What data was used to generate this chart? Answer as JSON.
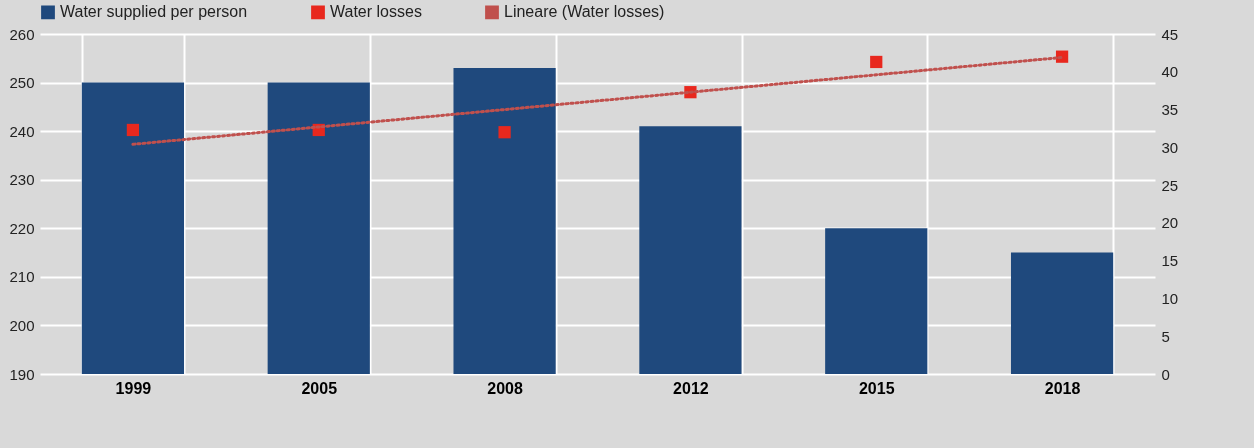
{
  "chart_data": {
    "type": "bar",
    "categories": [
      "1999",
      "2005",
      "2008",
      "2012",
      "2015",
      "2018"
    ],
    "series": [
      {
        "name": "Water supplied per person",
        "color": "#1f497d",
        "values": [
          250,
          250,
          253,
          241,
          220,
          215
        ]
      },
      {
        "name": "Water losses",
        "type": "scatter",
        "axis": "y2",
        "marker": "square",
        "color": "#e8281e",
        "values": [
          32.3,
          32.3,
          32.0,
          37.3,
          41.3,
          42.0
        ]
      },
      {
        "name": "Lineare (Water losses)",
        "type": "line",
        "axis": "y2",
        "line_style": "dotted",
        "color": "#c0504d",
        "values": [
          30.4,
          32.7,
          35.0,
          37.3,
          39.6,
          41.9
        ]
      }
    ],
    "ylim": [
      190,
      260
    ],
    "yticks": [
      190,
      200,
      210,
      220,
      230,
      240,
      250,
      260
    ],
    "y2lim": [
      0,
      45
    ],
    "y2ticks": [
      0,
      5,
      10,
      15,
      20,
      25,
      30,
      35,
      40,
      45
    ],
    "grid": true,
    "legend": "top"
  }
}
